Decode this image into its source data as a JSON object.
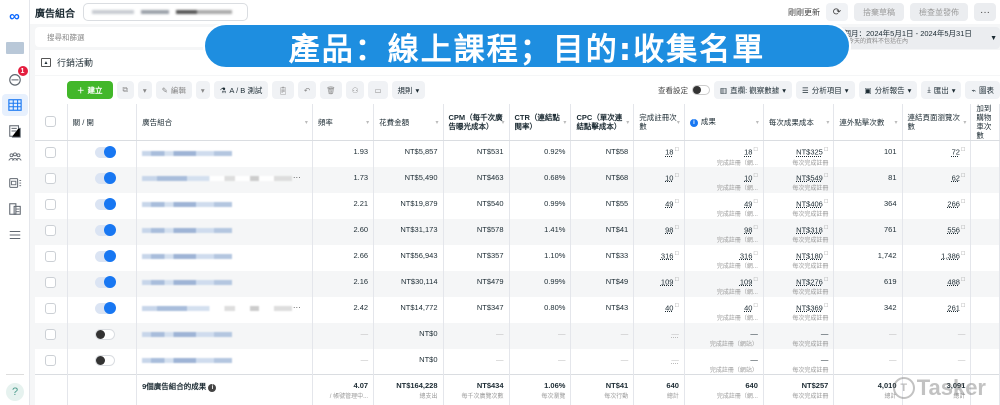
{
  "topbar": {
    "title": "廣告組合",
    "refresh_text": "剛剛更新",
    "discard_label": "捨棄草稿",
    "review_publish_label": "檢查並發佈",
    "more_label": "···"
  },
  "filterbar": {
    "search_placeholder": "搜尋和篩選"
  },
  "date_range": {
    "label": "上個月：2024年5月1日 - 2024年5月31日",
    "note": "註：今天的資料不包括在內"
  },
  "banner": {
    "text": "產品：線上課程；目的:收集名單"
  },
  "campaign": {
    "label": "行銷活動"
  },
  "nav": {
    "notification_count": "1",
    "help_label": "?"
  },
  "toolbar": {
    "create_label": "建立",
    "edit_label": "編輯",
    "ab_test_label": "A / B 測試",
    "rules_label": "規則",
    "view_settings_label": "查看設定",
    "columns_label": "直欄: 觀察數據",
    "breakdown_label": "分析項目",
    "reports_label": "分析報告",
    "export_label": "匯出",
    "charts_label": "圖表"
  },
  "table": {
    "headers": {
      "toggle": "關 / 開",
      "name": "廣告組合",
      "frequency": "頻率",
      "spend": "花費金額",
      "cpm": "CPM（每千次廣告曝光成本）",
      "ctr": "CTR（連結點閱率）",
      "cpc": "CPC（單次連結點擊成本）",
      "registrations": "完成註冊次數",
      "results": "成果",
      "cost_per_result": "每次成果成本",
      "outbound_clicks": "連外點擊次數",
      "landing_page_views": "連結頁面瀏覽次數",
      "add_to_cart": "加到購物車次數"
    },
    "rows": [
      {
        "status": "on",
        "more": false,
        "frequency": "1.93",
        "spend": "NT$5,857",
        "cpm": "NT$531",
        "ctr": "0.92%",
        "cpc": "NT$58",
        "registrations": "18",
        "results": "18",
        "results_sub": "完成註冊（網...",
        "cost_per_result": "NT$325",
        "cpr_sub": "每次完成註冊",
        "outbound_clicks": "101",
        "landing_page_views": "72"
      },
      {
        "status": "on",
        "more": true,
        "frequency": "1.73",
        "spend": "NT$5,490",
        "cpm": "NT$463",
        "ctr": "0.68%",
        "cpc": "NT$68",
        "registrations": "10",
        "results": "10",
        "results_sub": "完成註冊（網...",
        "cost_per_result": "NT$549",
        "cpr_sub": "每次完成註冊",
        "outbound_clicks": "81",
        "landing_page_views": "62"
      },
      {
        "status": "on",
        "more": false,
        "frequency": "2.21",
        "spend": "NT$19,879",
        "cpm": "NT$540",
        "ctr": "0.99%",
        "cpc": "NT$55",
        "registrations": "49",
        "results": "49",
        "results_sub": "完成註冊（網...",
        "cost_per_result": "NT$406",
        "cpr_sub": "每次完成註冊",
        "outbound_clicks": "364",
        "landing_page_views": "266"
      },
      {
        "status": "on",
        "more": false,
        "frequency": "2.60",
        "spend": "NT$31,173",
        "cpm": "NT$578",
        "ctr": "1.41%",
        "cpc": "NT$41",
        "registrations": "98",
        "results": "98",
        "results_sub": "完成註冊（網...",
        "cost_per_result": "NT$318",
        "cpr_sub": "每次完成註冊",
        "outbound_clicks": "761",
        "landing_page_views": "556"
      },
      {
        "status": "on",
        "more": false,
        "frequency": "2.66",
        "spend": "NT$56,943",
        "cpm": "NT$357",
        "ctr": "1.10%",
        "cpc": "NT$33",
        "registrations": "316",
        "results": "316",
        "results_sub": "完成註冊（網...",
        "cost_per_result": "NT$180",
        "cpr_sub": "每次完成註冊",
        "outbound_clicks": "1,742",
        "landing_page_views": "1,386"
      },
      {
        "status": "on",
        "more": false,
        "frequency": "2.16",
        "spend": "NT$30,114",
        "cpm": "NT$479",
        "ctr": "0.99%",
        "cpc": "NT$49",
        "registrations": "109",
        "results": "109",
        "results_sub": "完成註冊（網...",
        "cost_per_result": "NT$276",
        "cpr_sub": "每次完成註冊",
        "outbound_clicks": "619",
        "landing_page_views": "488"
      },
      {
        "status": "on",
        "more": true,
        "frequency": "2.42",
        "spend": "NT$14,772",
        "cpm": "NT$347",
        "ctr": "0.80%",
        "cpc": "NT$43",
        "registrations": "40",
        "results": "40",
        "results_sub": "完成註冊（網...",
        "cost_per_result": "NT$369",
        "cpr_sub": "每次完成註冊",
        "outbound_clicks": "342",
        "landing_page_views": "261"
      },
      {
        "status": "off",
        "more": false,
        "frequency": "—",
        "spend": "NT$0",
        "cpm": "—",
        "ctr": "—",
        "cpc": "—",
        "registrations": "—",
        "results": "—",
        "results_sub": "完成註冊（網站）",
        "cost_per_result": "—",
        "cpr_sub": "每次完成註冊",
        "outbound_clicks": "—",
        "landing_page_views": "—"
      },
      {
        "status": "off",
        "more": false,
        "frequency": "—",
        "spend": "NT$0",
        "cpm": "—",
        "ctr": "—",
        "cpc": "—",
        "registrations": "—",
        "results": "—",
        "results_sub": "完成註冊（網站）",
        "cost_per_result": "—",
        "cpr_sub": "每次完成註冊",
        "outbound_clicks": "—",
        "landing_page_views": "—"
      }
    ],
    "total": {
      "label": "9個廣告組合的成果",
      "frequency": "4.07",
      "frequency_sub": "/ 帳號管理中...",
      "spend": "NT$164,228",
      "spend_sub": "總支出",
      "cpm": "NT$434",
      "cpm_sub": "每千次廣覽次數",
      "ctr": "1.06%",
      "ctr_sub": "每次瀏覽",
      "cpc": "NT$41",
      "cpc_sub": "每次行動",
      "registrations": "640",
      "registrations_sub": "總計",
      "results": "640",
      "results_sub": "完成註冊（網...",
      "cost_per_result": "NT$257",
      "cpr_sub": "每次完成註冊",
      "outbound_clicks": "4,010",
      "outbound_sub": "總計",
      "landing_page_views": "3,091",
      "lpv_sub": "總計"
    }
  },
  "watermark": {
    "text": "Tasker"
  }
}
